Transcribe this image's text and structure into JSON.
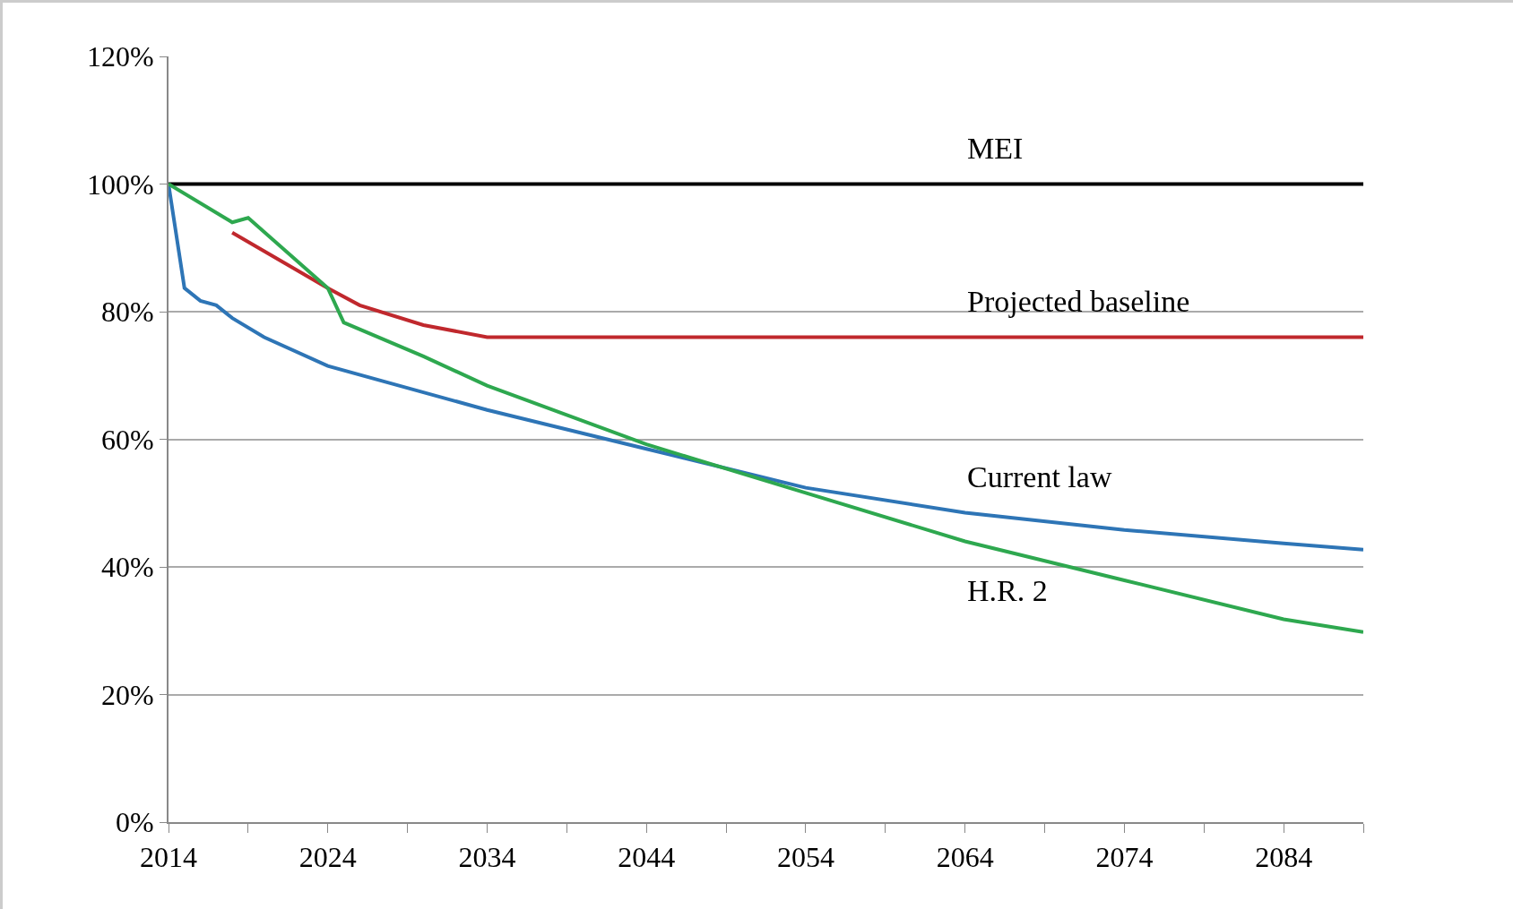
{
  "chart_data": {
    "type": "line",
    "series": [
      {
        "name": "MEI",
        "color": "#000000",
        "x": [
          2014,
          2089
        ],
        "values": [
          100,
          100
        ]
      },
      {
        "name": "Projected baseline",
        "color": "#c0282d",
        "x": [
          2018,
          2024,
          2026,
          2030,
          2034,
          2044,
          2064,
          2089
        ],
        "values": [
          92.4,
          83.7,
          81,
          77.9,
          76,
          76,
          76,
          76
        ]
      },
      {
        "name": "Current law",
        "color": "#2e75b6",
        "x": [
          2014,
          2015,
          2016,
          2017,
          2018,
          2020,
          2024,
          2034,
          2044,
          2054,
          2064,
          2074,
          2084,
          2089
        ],
        "values": [
          100,
          83.7,
          81.7,
          81,
          79,
          76,
          71.5,
          64.6,
          58.5,
          52.4,
          48.5,
          45.8,
          43.7,
          42.7
        ]
      },
      {
        "name": "H.R. 2",
        "color": "#2ea84f",
        "x": [
          2014,
          2018,
          2019,
          2024,
          2025,
          2030,
          2034,
          2044,
          2054,
          2064,
          2074,
          2084,
          2089
        ],
        "values": [
          100,
          94,
          94.7,
          83.7,
          78.3,
          73,
          68.4,
          59.2,
          51.6,
          44,
          37.9,
          31.8,
          29.8
        ]
      }
    ],
    "xlim": [
      2014,
      2089
    ],
    "xticks": [
      2014,
      {
        "value": 2019,
        "label": null
      },
      2024,
      {
        "value": 2029,
        "label": null
      },
      2034,
      {
        "value": 2039,
        "label": null
      },
      2044,
      {
        "value": 2049,
        "label": null
      },
      2054,
      {
        "value": 2059,
        "label": null
      },
      2064,
      {
        "value": 2069,
        "label": null
      },
      2074,
      {
        "value": 2079,
        "label": null
      },
      2084,
      {
        "value": 2089,
        "label": null
      }
    ],
    "ylim": [
      0,
      120
    ],
    "yticks": [
      {
        "value": 0,
        "label": "0%"
      },
      {
        "value": 20,
        "label": "20%"
      },
      {
        "value": 40,
        "label": "40%"
      },
      {
        "value": 60,
        "label": "60%"
      },
      {
        "value": 80,
        "label": "80%"
      },
      {
        "value": 100,
        "label": "100%"
      },
      {
        "value": 120,
        "label": "120%"
      }
    ],
    "grid": "y",
    "legend": false,
    "marker": "none",
    "line_style": "solid"
  }
}
